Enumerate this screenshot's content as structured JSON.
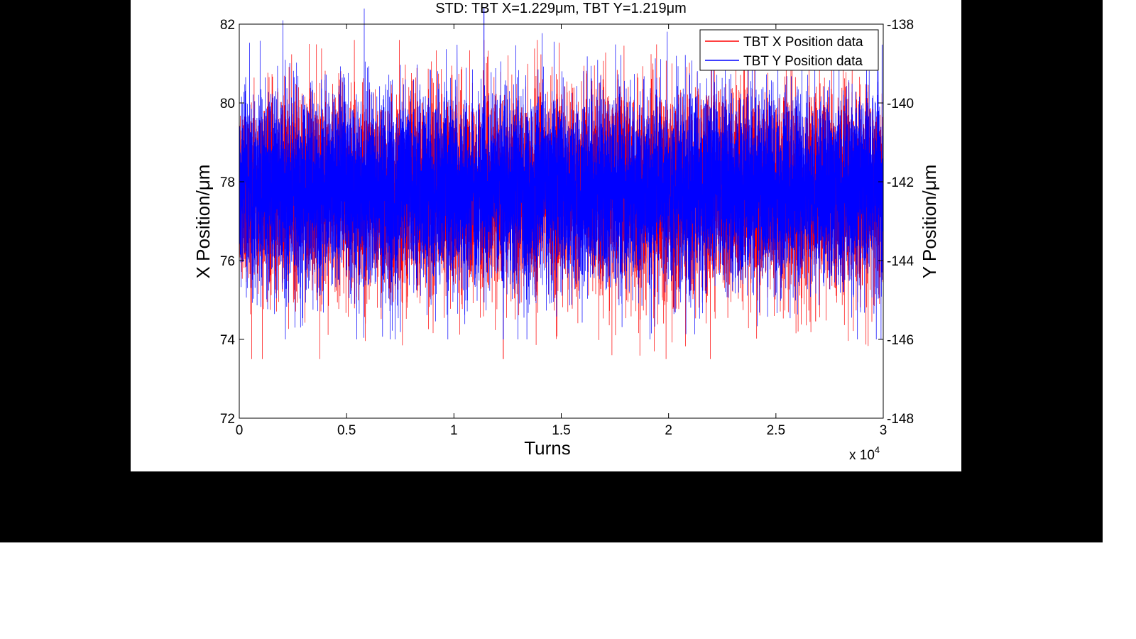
{
  "chart_data": {
    "type": "line",
    "title": "STD: TBT X=1.229μm, TBT Y=1.219μm",
    "xlabel": "Turns",
    "ylabel_left": "X Position/μm",
    "ylabel_right": "Y Position/μm",
    "x_multiplier_label": "x 10",
    "x_multiplier_exponent": "4",
    "xlim": [
      0,
      30000
    ],
    "ylim_left": [
      72,
      82
    ],
    "ylim_right": [
      -148,
      -138
    ],
    "x_ticks": [
      0,
      5000,
      10000,
      15000,
      20000,
      25000,
      30000
    ],
    "x_tick_labels": [
      "0",
      "0.5",
      "1",
      "1.5",
      "2",
      "2.5",
      "3"
    ],
    "y_ticks_left": [
      "72",
      "74",
      "76",
      "78",
      "80",
      "82"
    ],
    "y_ticks_right": [
      "-148",
      "-146",
      "-144",
      "-142",
      "-140",
      "-138"
    ],
    "grid": false,
    "legend_position": "top-right",
    "series": [
      {
        "name": "TBT X Position data",
        "axis": "left",
        "color": "#ff0000",
        "mean": 77.8,
        "std": 1.229,
        "max": 81.6,
        "min": 73.5,
        "n_samples": 30000
      },
      {
        "name": "TBT Y Position data",
        "axis": "right",
        "color": "#0000ff",
        "mean": -142.2,
        "std": 1.219,
        "max": -137.6,
        "min": -146.0,
        "n_samples": 30000
      }
    ]
  }
}
